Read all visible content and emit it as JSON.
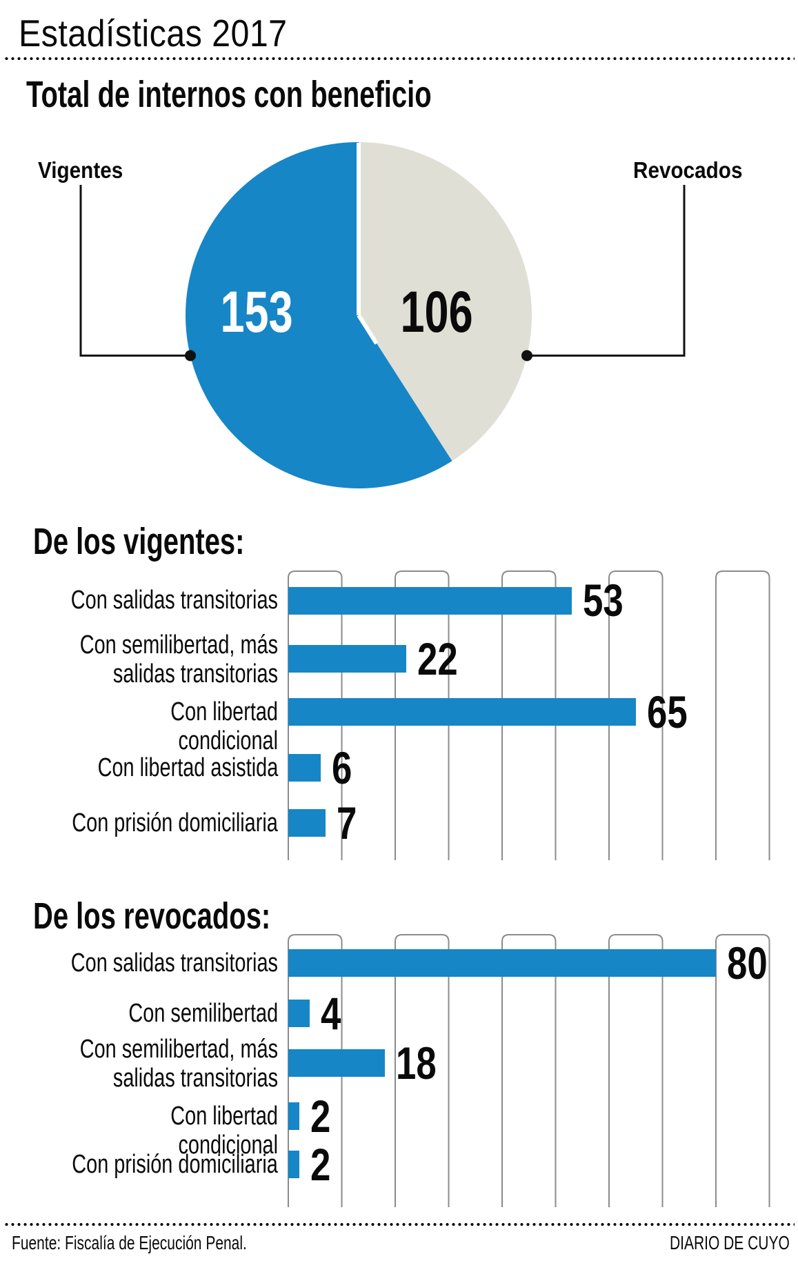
{
  "header": {
    "title": "Estadísticas 2017",
    "subtitle": "Total de internos con beneficio"
  },
  "palette": {
    "accent_blue": "#1686c7",
    "pie_remainder_gray": "#e0dfd5",
    "grid_line_gray": "#8b8b8b",
    "text_black": "#0a0a0a",
    "leader_line_black": "#111111",
    "pie_value_white": "#ffffff"
  },
  "chart_data": [
    {
      "type": "pie",
      "title": "Total de internos con beneficio",
      "start_angle": "top",
      "slices": [
        {
          "label": "Vigentes",
          "value": 153,
          "color": "#1686c7",
          "value_text_color": "#ffffff"
        },
        {
          "label": "Revocados",
          "value": 106,
          "color": "#e0dfd5",
          "value_text_color": "#0a0a0a"
        }
      ]
    },
    {
      "type": "bar",
      "orientation": "horizontal",
      "title": "De los vigentes:",
      "categories": [
        "Con salidas transitorias",
        "Con semilibertad, más\nsalidas transitorias",
        "Con libertad condicional",
        "Con libertad asistida",
        "Con prisión domiciliaria"
      ],
      "values": [
        53,
        22,
        65,
        6,
        7
      ],
      "bar_color": "#1686c7",
      "xlim": [
        0,
        90
      ],
      "gridline_step": 10,
      "grid_style": "rounded-top-column-outlines",
      "legend": "none"
    },
    {
      "type": "bar",
      "orientation": "horizontal",
      "title": "De los revocados:",
      "categories": [
        "Con salidas transitorias",
        "Con semilibertad",
        "Con semilibertad, más\nsalidas transitorias",
        "Con libertad condicional",
        "Con prisión domiciliaria"
      ],
      "values": [
        80,
        4,
        18,
        2,
        2
      ],
      "bar_color": "#1686c7",
      "xlim": [
        0,
        90
      ],
      "gridline_step": 10,
      "grid_style": "rounded-top-column-outlines",
      "legend": "none"
    }
  ],
  "footer": {
    "source": "Fuente: Fiscalía de Ejecución Penal.",
    "credit": "DIARIO DE CUYO"
  }
}
